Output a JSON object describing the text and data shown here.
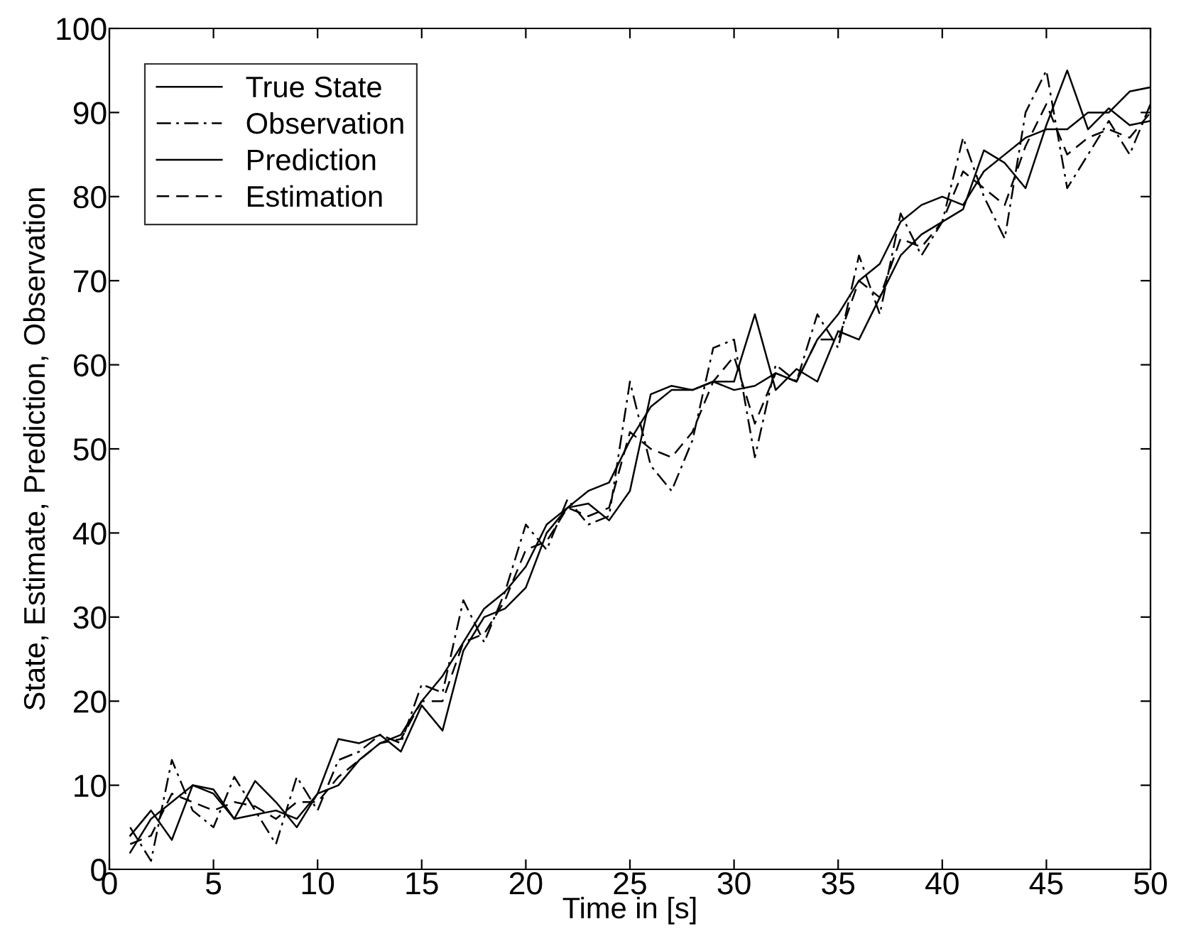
{
  "chart_data": {
    "type": "line",
    "xlabel": "Time in [s]",
    "ylabel": "State, Estimate, Prediction, Observation",
    "x": [
      1,
      2,
      3,
      4,
      5,
      6,
      7,
      8,
      9,
      10,
      11,
      12,
      13,
      14,
      15,
      16,
      17,
      18,
      19,
      20,
      21,
      22,
      23,
      24,
      25,
      26,
      27,
      28,
      29,
      30,
      31,
      32,
      33,
      34,
      35,
      36,
      37,
      38,
      39,
      40,
      41,
      42,
      43,
      44,
      45,
      46,
      47,
      48,
      49,
      50
    ],
    "series": [
      {
        "name": "True State",
        "color": "#000000",
        "line_style": "solid",
        "values": [
          2,
          6,
          8,
          10,
          9,
          6,
          6.5,
          7,
          6,
          9,
          10,
          13,
          15,
          16,
          20,
          23,
          27,
          31,
          33,
          36,
          41,
          43,
          45,
          46,
          51,
          55,
          57,
          57,
          58,
          57,
          57.5,
          59,
          58,
          63,
          66,
          70,
          72,
          77,
          79,
          80,
          79,
          83,
          85,
          87,
          88,
          88,
          90,
          90,
          92.5,
          93
        ]
      },
      {
        "name": "Observation",
        "color": "#000000",
        "line_style": "dashdot",
        "values": [
          5,
          1,
          13,
          7,
          5,
          11,
          7,
          3,
          11,
          7,
          13,
          14,
          16,
          15,
          22,
          21,
          32,
          27,
          33,
          41,
          38,
          44,
          41,
          42,
          58,
          48,
          45,
          51,
          62,
          63,
          49,
          60,
          58,
          66,
          62,
          73,
          66,
          78,
          73,
          77,
          87,
          80,
          75,
          90,
          95,
          81,
          85,
          89,
          85,
          91
        ]
      },
      {
        "name": "Prediction",
        "color": "#000000",
        "line_style": "solid",
        "values": [
          4,
          7,
          3.5,
          10,
          9.5,
          6,
          10.5,
          8,
          5,
          9,
          15.5,
          15,
          16,
          14,
          19.5,
          16.5,
          26,
          30,
          31,
          33.5,
          40,
          43,
          43.5,
          41.5,
          45,
          56.5,
          57.5,
          57,
          58,
          58,
          66,
          57,
          59.5,
          58,
          64,
          63,
          68,
          73,
          75.5,
          77,
          78.5,
          85.5,
          84,
          81,
          88.5,
          95,
          88,
          90.5,
          88.5,
          89
        ]
      },
      {
        "name": "Estimation",
        "color": "#000000",
        "line_style": "dashed",
        "values": [
          3,
          4,
          9,
          8,
          7,
          8,
          7.5,
          6,
          8,
          8,
          11,
          13,
          15,
          15.5,
          20,
          20,
          27,
          28,
          32,
          38,
          39,
          43,
          42,
          43,
          52,
          50,
          49,
          52,
          58,
          61,
          53,
          59,
          58,
          63,
          63,
          70,
          68,
          75,
          74,
          77,
          83,
          81,
          79,
          86,
          91,
          85,
          87,
          88,
          87,
          90
        ]
      }
    ],
    "xlim": [
      0,
      50
    ],
    "xticks": [
      0,
      5,
      10,
      15,
      20,
      25,
      30,
      35,
      40,
      45,
      50
    ],
    "ylim": [
      0,
      100
    ],
    "yticks": [
      0,
      10,
      20,
      30,
      40,
      50,
      60,
      70,
      80,
      90,
      100
    ],
    "grid": false,
    "legend": "top left",
    "marker": "none"
  }
}
